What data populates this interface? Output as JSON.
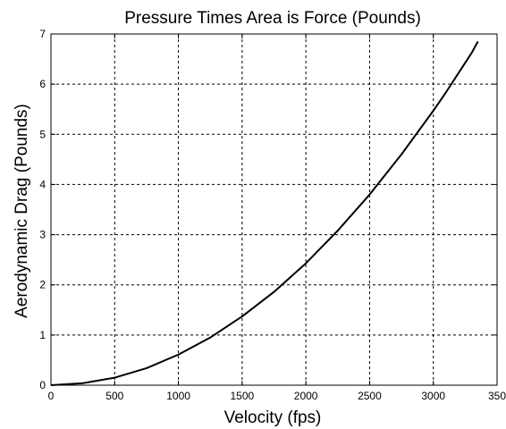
{
  "chart_data": {
    "type": "line",
    "title": "Pressure Times Area is Force (Pounds)",
    "xlabel": "Velocity (fps)",
    "ylabel": "Aerodynamic Drag (Pounds)",
    "xlim": [
      0,
      350
    ],
    "ylim": [
      0,
      7
    ],
    "xticks": [
      "0",
      "500",
      "1000",
      "1500",
      "2000",
      "2500",
      "3000",
      "350"
    ],
    "yticks": [
      "0",
      "1",
      "2",
      "3",
      "4",
      "5",
      "6",
      "7"
    ],
    "grid": true,
    "series": [
      {
        "color": "#000000",
        "x": [
          0,
          25,
          50,
          75,
          100,
          125,
          150,
          175,
          200,
          225,
          250,
          275,
          300,
          310,
          320,
          330,
          335
        ],
        "y": [
          0.0,
          0.04,
          0.15,
          0.34,
          0.61,
          0.95,
          1.37,
          1.86,
          2.43,
          3.08,
          3.8,
          4.6,
          5.47,
          5.84,
          6.23,
          6.62,
          6.85
        ]
      }
    ]
  }
}
